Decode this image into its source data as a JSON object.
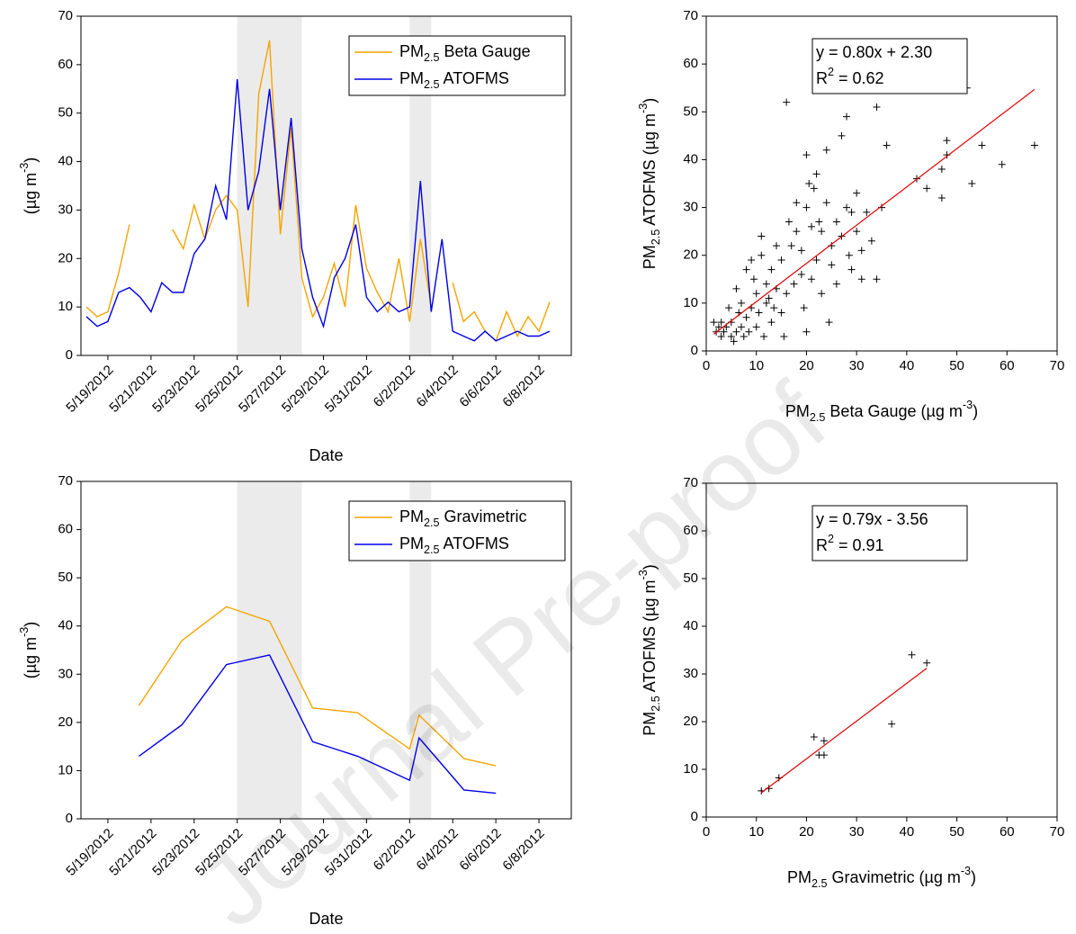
{
  "watermark": "Journal Pre-proof",
  "chart_data": [
    {
      "type": "line",
      "xlabel": "Date",
      "ylabel": "(µg m-3)",
      "xlim": [
        "2012-05-17T18:00",
        "2012-06-09T12:00"
      ],
      "xticks": [
        {
          "value": "2012-05-19",
          "label": "5/19/2012"
        },
        {
          "value": "2012-05-21",
          "label": "5/21/2012"
        },
        {
          "value": "2012-05-23",
          "label": "5/23/2012"
        },
        {
          "value": "2012-05-25",
          "label": "5/25/2012"
        },
        {
          "value": "2012-05-27",
          "label": "5/27/2012"
        },
        {
          "value": "2012-05-29",
          "label": "5/29/2012"
        },
        {
          "value": "2012-05-31",
          "label": "5/31/2012"
        },
        {
          "value": "2012-06-02",
          "label": "6/2/2012"
        },
        {
          "value": "2012-06-04",
          "label": "6/4/2012"
        },
        {
          "value": "2012-06-06",
          "label": "6/6/2012"
        },
        {
          "value": "2012-06-08",
          "label": "6/8/2012"
        }
      ],
      "ylim": [
        0,
        70
      ],
      "yticks": [
        0,
        10,
        20,
        30,
        40,
        50,
        60,
        70
      ],
      "shaded_spans": [
        [
          "2012-05-25",
          "2012-05-28"
        ],
        [
          "2012-06-02",
          "2012-06-03"
        ]
      ],
      "legend": "upper right",
      "x": [
        "2012-05-18T00:00",
        "2012-05-18T12:00",
        "2012-05-19T00:00",
        "2012-05-19T12:00",
        "2012-05-20T00:00",
        "2012-05-20T12:00",
        "2012-05-21T00:00",
        "2012-05-21T12:00",
        "2012-05-22T00:00",
        "2012-05-22T12:00",
        "2012-05-23T00:00",
        "2012-05-23T12:00",
        "2012-05-24T00:00",
        "2012-05-24T12:00",
        "2012-05-25T00:00",
        "2012-05-25T12:00",
        "2012-05-26T00:00",
        "2012-05-26T12:00",
        "2012-05-27T00:00",
        "2012-05-27T12:00",
        "2012-05-28T00:00",
        "2012-05-28T12:00",
        "2012-05-29T00:00",
        "2012-05-29T12:00",
        "2012-05-30T00:00",
        "2012-05-30T12:00",
        "2012-05-31T00:00",
        "2012-05-31T12:00",
        "2012-06-01T00:00",
        "2012-06-01T12:00",
        "2012-06-02T00:00",
        "2012-06-02T12:00",
        "2012-06-03T00:00",
        "2012-06-03T12:00",
        "2012-06-04T00:00",
        "2012-06-04T12:00",
        "2012-06-05T00:00",
        "2012-06-05T12:00",
        "2012-06-06T00:00",
        "2012-06-06T12:00",
        "2012-06-07T00:00",
        "2012-06-07T12:00",
        "2012-06-08T00:00",
        "2012-06-08T12:00"
      ],
      "series": [
        {
          "name": "PM2.5 Beta Gauge",
          "color": "#f5a400",
          "values": [
            10,
            8,
            9,
            17,
            27,
            null,
            null,
            null,
            26,
            22,
            31,
            24,
            30,
            33,
            30,
            10,
            54,
            65,
            25,
            47,
            16,
            8,
            12,
            19,
            10,
            31,
            18,
            13,
            9,
            20,
            7,
            24,
            10,
            null,
            15,
            7,
            9,
            5,
            3,
            9,
            4,
            8,
            5,
            11
          ]
        },
        {
          "name": "PM2.5 ATOFMS",
          "color": "#0000e6",
          "values": [
            8,
            6,
            7,
            13,
            14,
            12,
            9,
            15,
            13,
            13,
            21,
            24,
            35,
            28,
            57,
            30,
            38,
            55,
            30,
            49,
            22,
            12,
            6,
            16,
            20,
            27,
            12,
            9,
            11,
            9,
            10,
            36,
            9,
            24,
            5,
            4,
            3,
            5,
            3,
            4,
            5,
            4,
            4,
            5
          ]
        }
      ]
    },
    {
      "type": "scatter",
      "xlabel": "PM2.5 Beta Gauge (µg m-3)",
      "ylabel": "PM2.5 ATOFMS (µg m-3)",
      "xlim": [
        0,
        70
      ],
      "xticks": [
        0,
        10,
        20,
        30,
        40,
        50,
        60,
        70
      ],
      "ylim": [
        0,
        70
      ],
      "yticks": [
        0,
        10,
        20,
        30,
        40,
        50,
        60,
        70
      ],
      "annotations": [
        "y = 0.80x + 2.30",
        "R2 = 0.62"
      ],
      "color": "#000000",
      "x": [
        1.5,
        2,
        2.5,
        3,
        3,
        3.5,
        4,
        4.5,
        5,
        5,
        5.5,
        6,
        6,
        6.5,
        7,
        7,
        7.5,
        8,
        8,
        8.5,
        9,
        9,
        9.5,
        10,
        10,
        10.5,
        11,
        11,
        11.5,
        12,
        12,
        12.5,
        13,
        13,
        13.5,
        14,
        14,
        15,
        15,
        15.5,
        16,
        16,
        16.5,
        17,
        17.5,
        18,
        18,
        19,
        19,
        19.5,
        20,
        20,
        20,
        20.5,
        21,
        21,
        21.5,
        22,
        22,
        22.5,
        23,
        23,
        24,
        24,
        24.5,
        25,
        25,
        26,
        26,
        27,
        27,
        28,
        28,
        28.5,
        29,
        29,
        30,
        30,
        31,
        31,
        32,
        33,
        34,
        34,
        35,
        36,
        42,
        44,
        47,
        47,
        48,
        48,
        52,
        53,
        55,
        59,
        65.5
      ],
      "y": [
        6,
        4,
        5,
        3,
        6,
        4,
        5,
        9,
        3,
        6,
        2,
        13,
        4,
        8,
        5,
        10,
        3,
        7,
        17,
        4,
        9,
        19,
        15,
        5,
        12,
        8,
        20,
        24,
        3,
        10,
        14,
        11,
        6,
        17,
        9,
        13,
        22,
        8,
        19,
        3,
        12,
        52,
        27,
        22,
        14,
        25,
        31,
        16,
        21,
        9,
        4,
        30,
        41,
        35,
        15,
        26,
        34,
        19,
        37,
        27,
        12,
        25,
        31,
        42,
        6,
        18,
        22,
        27,
        14,
        45,
        24,
        49,
        30,
        20,
        29,
        17,
        33,
        25,
        21,
        15,
        29,
        23,
        15,
        51,
        30,
        43,
        36,
        34,
        38,
        32,
        44,
        41,
        55,
        35,
        43,
        39,
        43
      ],
      "fit": {
        "color": "#e00000",
        "x": [
          1.5,
          65.5
        ],
        "y": [
          3.5,
          54.7
        ]
      }
    },
    {
      "type": "line",
      "xlabel": "Date",
      "ylabel": "(µg m-3)",
      "xlim": [
        "2012-05-17T18:00",
        "2012-06-09T12:00"
      ],
      "xticks": [
        {
          "value": "2012-05-19",
          "label": "5/19/2012"
        },
        {
          "value": "2012-05-21",
          "label": "5/21/2012"
        },
        {
          "value": "2012-05-23",
          "label": "5/23/2012"
        },
        {
          "value": "2012-05-25",
          "label": "5/25/2012"
        },
        {
          "value": "2012-05-27",
          "label": "5/27/2012"
        },
        {
          "value": "2012-05-29",
          "label": "5/29/2012"
        },
        {
          "value": "2012-05-31",
          "label": "5/31/2012"
        },
        {
          "value": "2012-06-02",
          "label": "6/2/2012"
        },
        {
          "value": "2012-06-04",
          "label": "6/4/2012"
        },
        {
          "value": "2012-06-06",
          "label": "6/6/2012"
        },
        {
          "value": "2012-06-08",
          "label": "6/8/2012"
        }
      ],
      "ylim": [
        0,
        70
      ],
      "yticks": [
        0,
        10,
        20,
        30,
        40,
        50,
        60,
        70
      ],
      "shaded_spans": [
        [
          "2012-05-25",
          "2012-05-28"
        ],
        [
          "2012-06-02",
          "2012-06-03"
        ]
      ],
      "legend": "upper right",
      "x": [
        "2012-05-20T10:30",
        "2012-05-22T10:30",
        "2012-05-24T12:00",
        "2012-05-26T12:00",
        "2012-05-28T12:00",
        "2012-05-30T14:00",
        "2012-06-02T00:00",
        "2012-06-02T10:30",
        "2012-06-04T12:30",
        "2012-06-06T00:00"
      ],
      "series": [
        {
          "name": "PM2.5 Gravimetric",
          "color": "#f5a400",
          "values": [
            23.5,
            37,
            44,
            41,
            23,
            22,
            14.5,
            21.5,
            12.5,
            11
          ]
        },
        {
          "name": "PM2.5 ATOFMS",
          "color": "#0000e6",
          "values": [
            13,
            19.5,
            32,
            34,
            16,
            13,
            8,
            16.8,
            6,
            5.3
          ]
        }
      ]
    },
    {
      "type": "scatter",
      "xlabel": "PM2.5 Gravimetric (µg m-3)",
      "ylabel": "PM2.5 ATOFMS (µg m-3)",
      "xlim": [
        0,
        70
      ],
      "xticks": [
        0,
        10,
        20,
        30,
        40,
        50,
        60,
        70
      ],
      "ylim": [
        0,
        70
      ],
      "yticks": [
        0,
        10,
        20,
        30,
        40,
        50,
        60,
        70
      ],
      "annotations": [
        "y = 0.79x - 3.56",
        "R2 = 0.91"
      ],
      "color": "#000000",
      "x": [
        11,
        12.5,
        14.5,
        21.5,
        22.5,
        23.5,
        23.5,
        37,
        41,
        44
      ],
      "y": [
        5.5,
        6,
        8.2,
        16.8,
        13,
        16,
        13,
        19.5,
        34,
        32.3
      ],
      "fit": {
        "color": "#e00000",
        "x": [
          11,
          44
        ],
        "y": [
          5.1,
          31.2
        ]
      }
    }
  ]
}
